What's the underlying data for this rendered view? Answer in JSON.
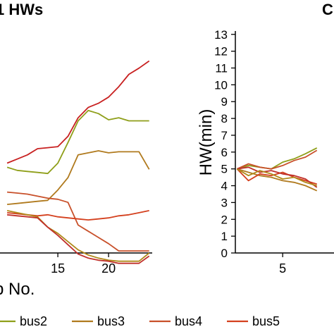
{
  "chart_data": [
    {
      "type": "line",
      "title": "1 HWs",
      "xlabel": "p No.",
      "xticks": [
        "15",
        "20"
      ],
      "xlim": [
        9.3,
        24.3
      ],
      "ylim": [
        2.45,
        13.2
      ],
      "series": [
        {
          "name": "bus2",
          "color": "#8f9f1a",
          "x": [
            10,
            11,
            12,
            13,
            14,
            15,
            16,
            17,
            18,
            19,
            20,
            21,
            22,
            23,
            24
          ],
          "y": [
            6.6,
            6.45,
            6.4,
            6.35,
            6.3,
            6.8,
            7.8,
            8.85,
            9.35,
            9.2,
            8.9,
            9.0,
            8.85,
            8.85,
            8.85
          ]
        },
        {
          "name": "bus3",
          "color": "#b07a1e",
          "x": [
            10,
            11,
            12,
            13,
            14,
            15,
            16,
            17,
            18,
            19,
            20,
            21,
            22,
            23,
            24
          ],
          "y": [
            4.8,
            4.85,
            4.9,
            4.95,
            5.0,
            5.5,
            6.1,
            7.2,
            7.3,
            7.4,
            7.3,
            7.35,
            7.35,
            7.35,
            6.5
          ]
        },
        {
          "name": "bus4",
          "color": "#c8502a",
          "x": [
            10,
            11,
            12,
            13,
            14,
            15,
            16,
            17,
            18,
            19,
            20,
            21,
            22,
            23,
            24
          ],
          "y": [
            5.4,
            5.35,
            5.3,
            5.2,
            5.1,
            5.05,
            4.9,
            3.8,
            3.5,
            3.2,
            2.9,
            2.55,
            2.55,
            2.55,
            2.55
          ]
        },
        {
          "name": "bus5",
          "color": "#d4401e",
          "x": [
            10,
            11,
            12,
            13,
            14,
            15,
            16,
            17,
            18,
            19,
            20,
            21,
            22,
            23,
            24
          ],
          "y": [
            4.4,
            4.35,
            4.3,
            4.25,
            4.3,
            4.2,
            4.15,
            4.1,
            4.05,
            4.1,
            4.15,
            4.25,
            4.3,
            4.4,
            4.5
          ]
        },
        {
          "name": "",
          "color": "#b08a1a",
          "x": [
            10,
            11,
            12,
            13,
            14,
            15,
            16,
            17,
            18,
            19,
            20,
            21,
            22,
            23,
            24
          ],
          "y": [
            4.5,
            4.4,
            4.3,
            4.2,
            3.7,
            3.4,
            3.0,
            2.6,
            2.35,
            2.2,
            2.1,
            2.05,
            2.05,
            2.05,
            2.45
          ]
        },
        {
          "name": "",
          "color": "#c0302a",
          "x": [
            10,
            11,
            12,
            13,
            14,
            15,
            16,
            17,
            18,
            19,
            20,
            21,
            22,
            23,
            24
          ],
          "y": [
            4.3,
            4.25,
            4.2,
            4.15,
            3.7,
            3.3,
            2.85,
            2.4,
            2.2,
            2.1,
            2.05,
            1.95,
            1.95,
            1.95,
            2.3
          ]
        },
        {
          "name": "",
          "color": "#c82020",
          "x": [
            10,
            11,
            12,
            13,
            14,
            15,
            16,
            17,
            18,
            19,
            20,
            21,
            22,
            23,
            24
          ],
          "y": [
            6.8,
            7.0,
            7.2,
            7.5,
            7.55,
            7.6,
            8.1,
            9.0,
            9.5,
            9.7,
            10.0,
            10.5,
            11.1,
            11.4,
            11.75
          ]
        }
      ]
    },
    {
      "type": "line",
      "title": "C",
      "xlabel": "",
      "ylabel": "HW(min)",
      "xticks": [
        "5"
      ],
      "yticks": [
        "0",
        "1",
        "2",
        "3",
        "4",
        "5",
        "6",
        "7",
        "8",
        "9",
        "10",
        "11",
        "12",
        "13"
      ],
      "xlim": [
        0.85,
        9.5
      ],
      "ylim": [
        0,
        13.2
      ],
      "series": [
        {
          "name": "bus2",
          "color": "#8f9f1a",
          "x": [
            1,
            2,
            3,
            4,
            5,
            6,
            7,
            8
          ],
          "y": [
            5.0,
            5.2,
            5.1,
            5.0,
            5.4,
            5.6,
            5.9,
            6.25
          ]
        },
        {
          "name": "bus3",
          "color": "#b07a1e",
          "x": [
            1,
            2,
            3,
            4,
            5,
            6,
            7,
            8
          ],
          "y": [
            5.0,
            4.8,
            4.6,
            4.5,
            4.3,
            4.2,
            4.0,
            3.7
          ]
        },
        {
          "name": "bus4",
          "color": "#c8502a",
          "x": [
            1,
            2,
            3,
            4,
            5,
            6,
            7,
            8
          ],
          "y": [
            5.0,
            5.3,
            5.1,
            5.0,
            5.2,
            5.5,
            5.7,
            6.1
          ]
        },
        {
          "name": "bus5",
          "color": "#d4401e",
          "x": [
            1,
            2,
            3,
            4,
            5,
            6,
            7,
            8
          ],
          "y": [
            5.0,
            4.3,
            4.7,
            4.6,
            4.8,
            4.5,
            4.3,
            4.1
          ]
        },
        {
          "name": "",
          "color": "#c0302a",
          "x": [
            1,
            2,
            3,
            4,
            5,
            6,
            7,
            8
          ],
          "y": [
            5.0,
            5.1,
            4.8,
            4.9,
            4.7,
            4.6,
            4.4,
            3.9
          ]
        },
        {
          "name": "",
          "color": "#b08a1a",
          "x": [
            1,
            2,
            3,
            4,
            5,
            6,
            7,
            8
          ],
          "y": [
            5.0,
            4.6,
            4.9,
            4.7,
            4.4,
            4.5,
            4.2,
            4.0
          ]
        }
      ]
    }
  ],
  "legend": {
    "items": [
      {
        "label": "bus2",
        "color": "#8f9f1a"
      },
      {
        "label": "bus3",
        "color": "#b07a1e"
      },
      {
        "label": "bus4",
        "color": "#c8502a"
      },
      {
        "label": "bus5",
        "color": "#d4401e"
      }
    ]
  }
}
